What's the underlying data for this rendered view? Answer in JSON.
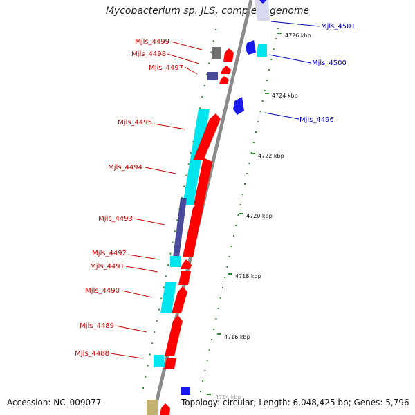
{
  "title": "Mycobacterium sp. JLS, complete genome",
  "accession": "Accession: NC_009077",
  "summary": "Topology: circular; Length: 6,048,425 bp; Genes: 5,796",
  "colors": {
    "backbone": "#8a8a8a",
    "tick": "#2e8b2e",
    "left_label": "#cc0000",
    "right_label": "#0000bb",
    "red": "#ff0000",
    "cyan": "#00e5ee",
    "navy": "#4a4a9a",
    "gray": "#707070",
    "blue": "#1a1aee",
    "tan": "#c4b070",
    "pale": "#d8d8ee"
  },
  "ticks": [
    "4726 kbp",
    "4724 kbp",
    "4722 kbp",
    "4720 kbp",
    "4718 kbp",
    "4716 kbp",
    "4714 kbp"
  ],
  "left_genes": [
    "Mjls_4499",
    "Mjls_4498",
    "Mjls_4497",
    "Mjls_4495",
    "Mjls_4494",
    "Mjls_4493",
    "Mjls_4492",
    "Mjls_4491",
    "Mjls_4490",
    "Mjls_4489",
    "Mjls_4488"
  ],
  "right_genes": [
    "Mjls_4501",
    "Mjls_4500",
    "Mjls_4496"
  ]
}
